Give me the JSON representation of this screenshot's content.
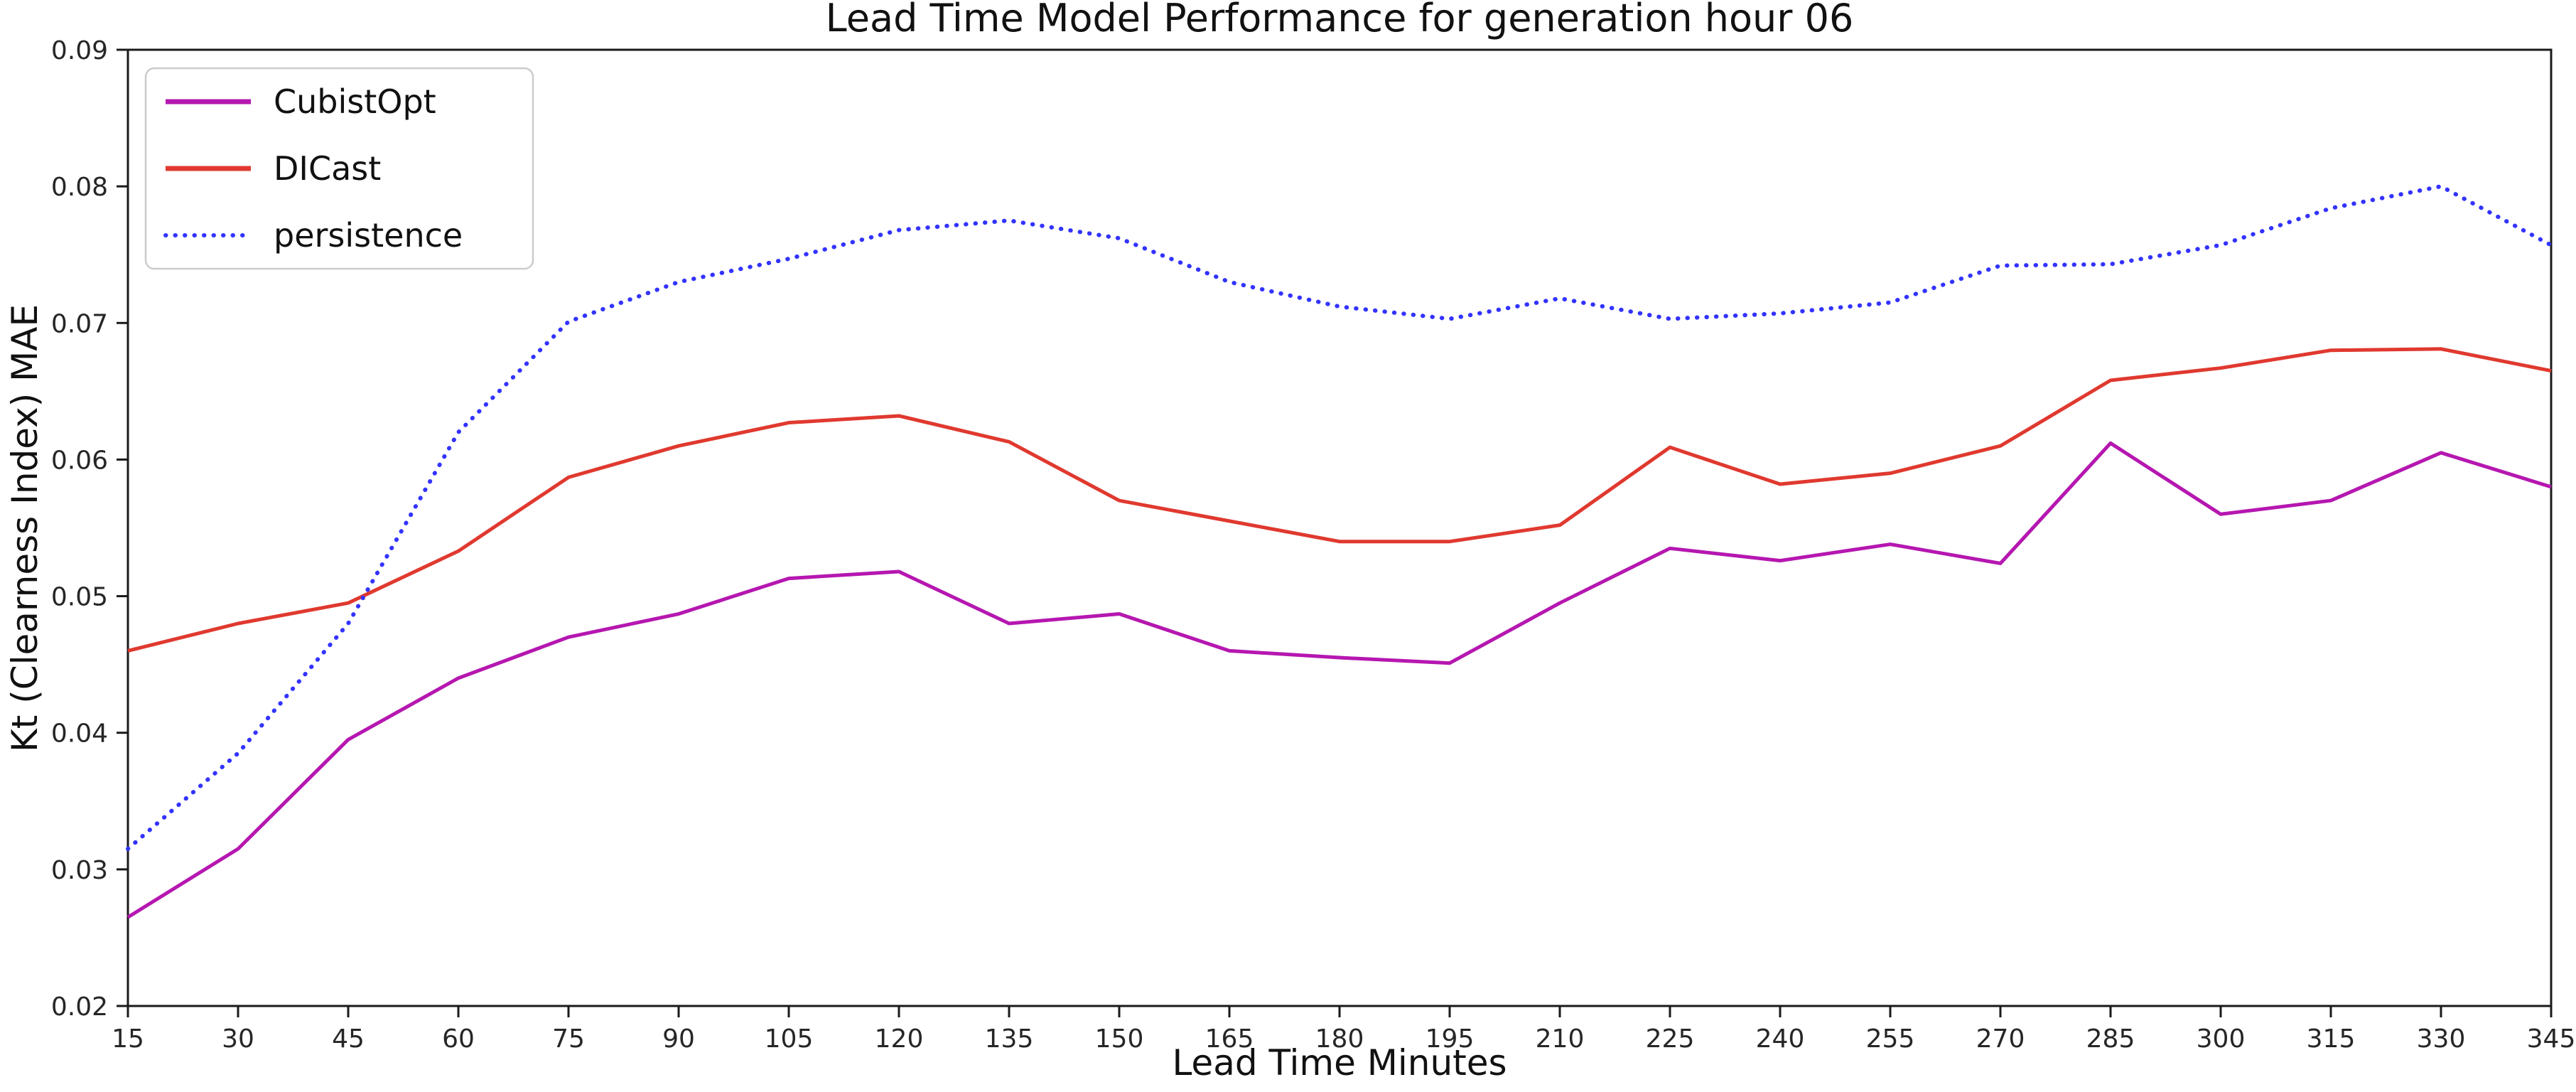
{
  "window": {
    "background": "#ffffff"
  },
  "chart_data": {
    "type": "line",
    "title": "Lead Time Model Performance for generation hour 06",
    "xlabel": "Lead Time Minutes",
    "ylabel": "Kt (Clearness Index) MAE",
    "xlim": [
      15,
      345
    ],
    "ylim": [
      0.02,
      0.09
    ],
    "xticks": [
      15,
      30,
      45,
      60,
      75,
      90,
      105,
      120,
      135,
      150,
      165,
      180,
      195,
      210,
      225,
      240,
      255,
      270,
      285,
      300,
      315,
      330,
      345
    ],
    "yticks": [
      0.02,
      0.03,
      0.04,
      0.05,
      0.06,
      0.07,
      0.08,
      0.09
    ],
    "grid": false,
    "legend_position": "upper-left",
    "axis_color": "#1a1a1a",
    "x": [
      15,
      30,
      45,
      60,
      75,
      90,
      105,
      120,
      135,
      150,
      165,
      180,
      195,
      210,
      225,
      240,
      255,
      270,
      285,
      300,
      315,
      330,
      345
    ],
    "series": [
      {
        "name": "CubistOpt",
        "color": "#b517b0",
        "style": "solid",
        "values": [
          0.0265,
          0.0315,
          0.0395,
          0.044,
          0.047,
          0.0487,
          0.0513,
          0.0518,
          0.048,
          0.0487,
          0.046,
          0.0455,
          0.0451,
          0.0495,
          0.0535,
          0.0526,
          0.0538,
          0.0524,
          0.0612,
          0.056,
          0.057,
          0.0605,
          0.058
        ]
      },
      {
        "name": "DICast",
        "color": "#e0392f",
        "style": "solid",
        "values": [
          0.046,
          0.048,
          0.0495,
          0.0533,
          0.0587,
          0.061,
          0.0627,
          0.0632,
          0.0613,
          0.057,
          0.0555,
          0.054,
          0.054,
          0.0552,
          0.0609,
          0.0582,
          0.059,
          0.061,
          0.0658,
          0.0667,
          0.068,
          0.0681,
          0.0665
        ]
      },
      {
        "name": "persistence",
        "color": "#3333ff",
        "style": "dotted",
        "values": [
          0.0315,
          0.0385,
          0.048,
          0.062,
          0.0701,
          0.073,
          0.0747,
          0.0768,
          0.0775,
          0.0762,
          0.073,
          0.0712,
          0.0703,
          0.0718,
          0.0703,
          0.0707,
          0.0715,
          0.0742,
          0.0743,
          0.0757,
          0.0784,
          0.08,
          0.0757
        ]
      }
    ]
  }
}
